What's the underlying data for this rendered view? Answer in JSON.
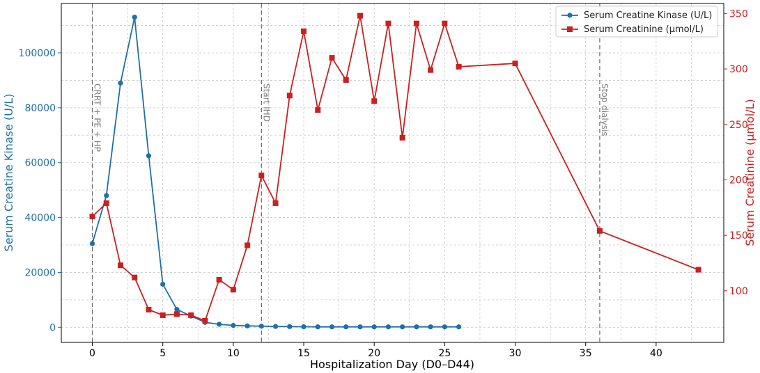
{
  "colors": {
    "series_ck": "#1f6fa8",
    "series_cr": "#cc1f1f",
    "grid": "#c8c8c8",
    "annotation": "#7f7f7f"
  },
  "chart_data": {
    "type": "line",
    "xlabel": "Hospitalization Day (D0–D44)",
    "ylabel_left": "Serum Creatine Kinase (U/L)",
    "ylabel_right": "Serum Creatinine (μmol/L)",
    "xlim": [
      -2.2,
      44.8
    ],
    "ylim_left": [
      -5500,
      118000
    ],
    "ylim_right": [
      53.5,
      359
    ],
    "x_ticks": [
      0,
      5,
      10,
      15,
      20,
      25,
      30,
      35,
      40
    ],
    "y_ticks_left": [
      0,
      20000,
      40000,
      60000,
      80000,
      100000
    ],
    "y_ticks_right": [
      100,
      150,
      200,
      250,
      300,
      350
    ],
    "grid": true,
    "legend_position": "top-right",
    "series": [
      {
        "name": "Serum Creatine Kinase (U/L)",
        "axis": "left",
        "marker": "circle",
        "color": "#1f6fa8",
        "x": [
          0,
          1,
          2,
          3,
          4,
          5,
          6,
          7,
          8,
          9,
          10,
          11,
          12,
          13,
          14,
          15,
          16,
          17,
          18,
          19,
          20,
          21,
          22,
          23,
          24,
          25,
          26
        ],
        "y": [
          30500,
          48000,
          89000,
          113000,
          62500,
          15700,
          6500,
          4100,
          1800,
          1100,
          700,
          500,
          400,
          300,
          250,
          200,
          150,
          150,
          150,
          150,
          150,
          150,
          150,
          150,
          150,
          150,
          150
        ]
      },
      {
        "name": "Serum Creatinine (μmol/L)",
        "axis": "right",
        "marker": "square",
        "color": "#cc1f1f",
        "x": [
          0,
          1,
          2,
          3,
          4,
          5,
          6,
          7,
          8,
          9,
          10,
          11,
          12,
          13,
          14,
          15,
          16,
          17,
          18,
          19,
          20,
          21,
          22,
          23,
          24,
          25,
          26,
          30,
          36,
          43
        ],
        "y": [
          167,
          179,
          123,
          112,
          83,
          78,
          79,
          78,
          73,
          110,
          101,
          141,
          204,
          179,
          276,
          334,
          263,
          310,
          290,
          348,
          271,
          341,
          238,
          341,
          299,
          341,
          302,
          305,
          154,
          119
        ]
      }
    ],
    "annotations": [
      {
        "x": 0,
        "label": "CRRT + PE + HP"
      },
      {
        "x": 12,
        "label": "Start IHD"
      },
      {
        "x": 36,
        "label": "Stop dialysis"
      }
    ]
  }
}
